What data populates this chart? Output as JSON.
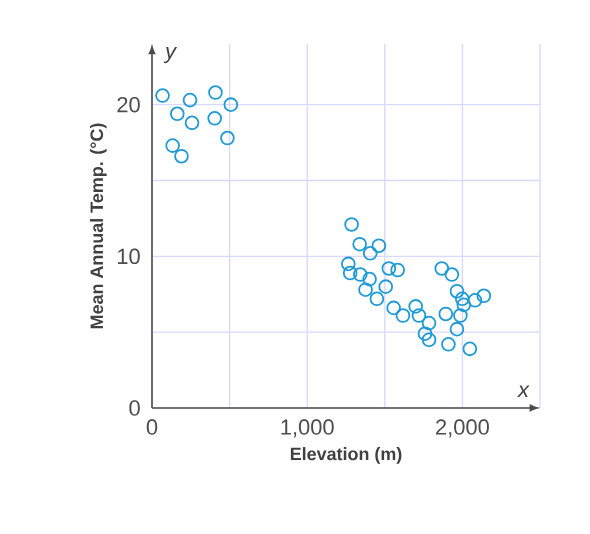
{
  "chart_data": {
    "type": "scatter",
    "xlabel": "Elevation (m)",
    "ylabel": "Mean Annual Temp. (°C)",
    "annotations": [
      "x",
      "y"
    ],
    "x": [
      68,
      245,
      163,
      258,
      409,
      508,
      404,
      486,
      133,
      190,
      1286,
      1338,
      1406,
      1462,
      1265,
      1277,
      1342,
      1402,
      1376,
      1506,
      1526,
      1583,
      1449,
      1557,
      1617,
      1699,
      1720,
      1785,
      1759,
      1785,
      1867,
      1932,
      1965,
      1999,
      2081,
      2138,
      1893,
      1987,
      1965,
      1910,
      2048,
      2009
    ],
    "values": [
      20.6,
      20.3,
      19.4,
      18.8,
      20.8,
      20.0,
      19.1,
      17.8,
      17.3,
      16.6,
      12.1,
      10.8,
      10.2,
      10.7,
      9.5,
      8.9,
      8.8,
      8.5,
      7.8,
      8.0,
      9.2,
      9.1,
      7.2,
      6.6,
      6.1,
      6.7,
      6.1,
      5.6,
      4.9,
      4.5,
      9.2,
      8.8,
      7.7,
      7.2,
      7.1,
      7.4,
      6.2,
      6.1,
      5.2,
      4.2,
      3.9,
      6.8
    ],
    "color": "#1e9ad6",
    "marker": "circle",
    "grid": true,
    "xlim": [
      0,
      2500
    ],
    "ylim": [
      0,
      24
    ],
    "xticks": [
      0,
      {
        "value": 500,
        "label": null
      },
      {
        "value": 1000,
        "label": "1,000"
      },
      {
        "value": 1500,
        "label": null
      },
      {
        "value": 2000,
        "label": "2,000"
      },
      {
        "value": 2500,
        "label": null
      }
    ],
    "yticks": [
      0,
      {
        "value": 5,
        "label": null
      },
      10,
      {
        "value": 15,
        "label": null
      },
      20
    ]
  }
}
